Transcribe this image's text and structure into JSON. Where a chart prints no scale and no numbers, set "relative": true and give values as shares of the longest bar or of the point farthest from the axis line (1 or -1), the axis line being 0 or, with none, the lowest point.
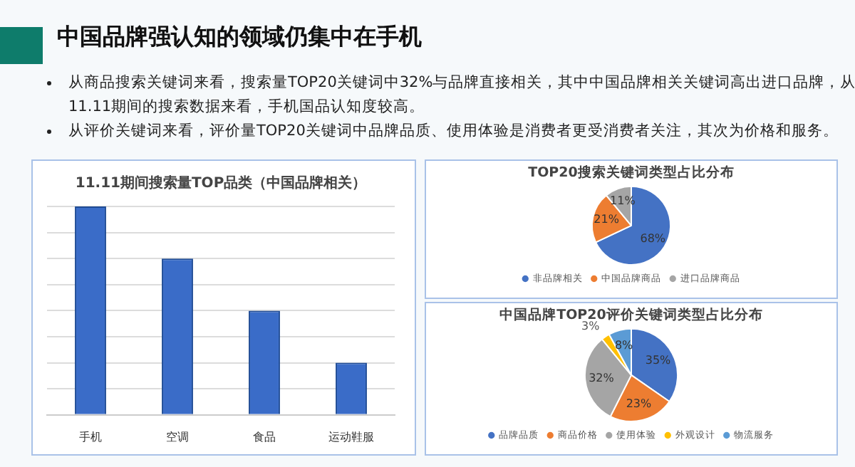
{
  "chart_data": [
    {
      "type": "other",
      "title": "中国品牌强认知的领域仍集中在手机",
      "annotations": [
        "从商品搜索关键词来看，搜索量TOP20关键词中32%与品牌直接相关，其中中国品牌相关关键词高出进口品牌，从11.11期间的搜索数据来看，手机国品认知度较高。",
        "从评价关键词来看，评价量TOP20关键词中品牌品质、使用体验是消费者更受消费者关注，其次为价格和服务。"
      ]
    },
    {
      "type": "bar",
      "title": "11.11期间搜索量TOP品类（中国品牌相关）",
      "categories": [
        "手机",
        "空调",
        "食品",
        "运动鞋服"
      ],
      "values": [
        1,
        0.75,
        0.5,
        0.25
      ],
      "color": "#3a6cc8",
      "relative": true,
      "grid": "y",
      "legend": false
    },
    {
      "type": "pie",
      "title": "TOP20搜索关键词类型占比分布",
      "categories": [
        "非品牌相关",
        "中国品牌商品",
        "进口品牌商品"
      ],
      "values": [
        68,
        21,
        11
      ],
      "colors": [
        "#4472c4",
        "#ed7d31",
        "#a5a5a5"
      ],
      "value_labels": [
        "68%",
        "21%",
        "11%"
      ],
      "legend": "bottom"
    },
    {
      "type": "pie",
      "title": "中国品牌TOP20评价关键词类型占比分布",
      "categories": [
        "品牌品质",
        "商品价格",
        "使用体验",
        "外观设计",
        "物流服务"
      ],
      "values": [
        35,
        23,
        32,
        3,
        8
      ],
      "colors": [
        "#4472c4",
        "#ed7d31",
        "#a5a5a5",
        "#ffc000",
        "#5b9bd5"
      ],
      "value_labels": [
        "35%",
        "23%",
        "32%",
        "3%",
        "8%"
      ],
      "legend": "bottom"
    }
  ]
}
